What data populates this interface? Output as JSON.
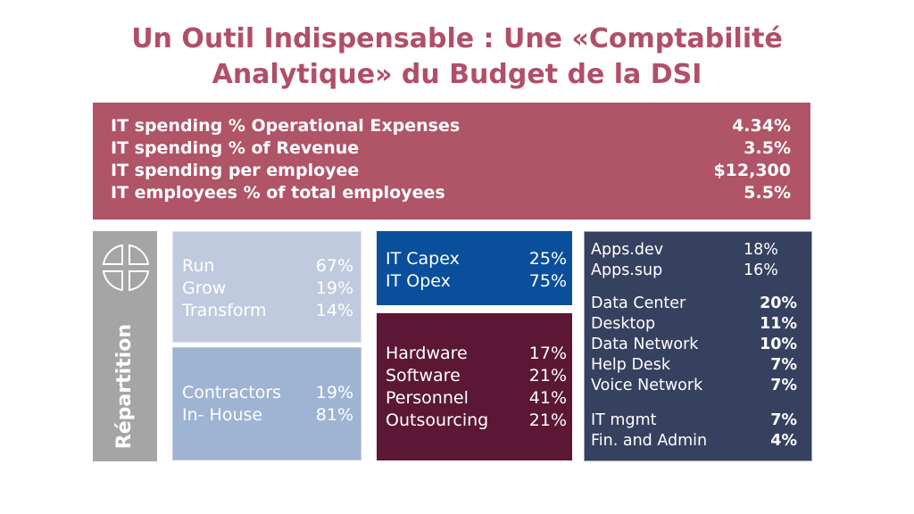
{
  "title": {
    "line1": "Un Outil Indispensable : Une «Comptabilité",
    "line2": "Analytique» du Budget de la DSI"
  },
  "kpis": [
    {
      "label": "IT spending % Operational Expenses",
      "value": "4.34%"
    },
    {
      "label": "IT spending % of Revenue",
      "value": "3.5%"
    },
    {
      "label": "IT spending per employee",
      "value": "$12,300"
    },
    {
      "label": "IT employees % of total employees",
      "value": "5.5%"
    }
  ],
  "side": {
    "label": "Répartition",
    "icon": "circle-quadrants-icon"
  },
  "run_grow": [
    {
      "label": "Run",
      "value": "67%"
    },
    {
      "label": "Grow",
      "value": "19%"
    },
    {
      "label": "Transform",
      "value": "14%"
    }
  ],
  "staffing": [
    {
      "label": "Contractors",
      "value": "19%"
    },
    {
      "label": "In- House",
      "value": "81%"
    }
  ],
  "capex_opex": [
    {
      "label": "IT Capex",
      "value": "25%"
    },
    {
      "label": "IT Opex",
      "value": "75%"
    }
  ],
  "categories": [
    {
      "label": "Hardware",
      "value": "17%"
    },
    {
      "label": "Software",
      "value": "21%"
    },
    {
      "label": "Personnel",
      "value": "41%"
    },
    {
      "label": "Outsourcing",
      "value": "21%"
    }
  ],
  "functions": {
    "apps": [
      {
        "label": "Apps.dev",
        "value": "18%"
      },
      {
        "label": "Apps.sup",
        "value": "16%"
      }
    ],
    "infra": [
      {
        "label": "Data Center",
        "value": "20%"
      },
      {
        "label": "Desktop",
        "value": "11%"
      },
      {
        "label": "Data Network",
        "value": "10%"
      },
      {
        "label": "Help Desk",
        "value": "7%"
      },
      {
        "label": "Voice Network",
        "value": "7%"
      }
    ],
    "admin": [
      {
        "label": "IT mgmt",
        "value": "7%"
      },
      {
        "label": "Fin. and Admin",
        "value": "4%"
      }
    ]
  },
  "colors": {
    "title": "#b14f68",
    "kpi": "#b05468",
    "side": "#a5a5a5",
    "run": "#c0cade",
    "staff": "#9fb3d3",
    "capex": "#0a4f9c",
    "categories": "#5c1734",
    "functions": "#36405f"
  }
}
